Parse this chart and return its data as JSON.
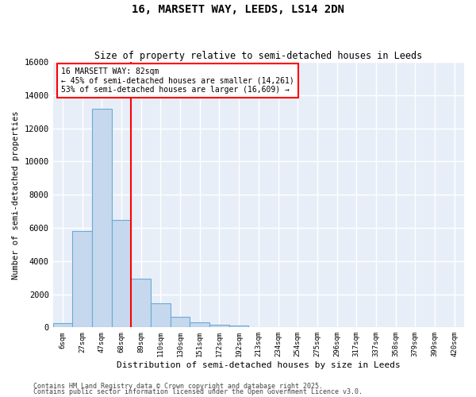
{
  "title": "16, MARSETT WAY, LEEDS, LS14 2DN",
  "subtitle": "Size of property relative to semi-detached houses in Leeds",
  "xlabel": "Distribution of semi-detached houses by size in Leeds",
  "ylabel": "Number of semi-detached properties",
  "bar_color": "#c5d8ee",
  "bar_edge_color": "#6aaad4",
  "background_color": "#e8eef8",
  "grid_color": "white",
  "categories": [
    "6sqm",
    "27sqm",
    "47sqm",
    "68sqm",
    "89sqm",
    "110sqm",
    "130sqm",
    "151sqm",
    "172sqm",
    "192sqm",
    "213sqm",
    "234sqm",
    "254sqm",
    "275sqm",
    "296sqm",
    "317sqm",
    "337sqm",
    "358sqm",
    "379sqm",
    "399sqm",
    "420sqm"
  ],
  "values": [
    270,
    5800,
    13200,
    6500,
    2950,
    1450,
    620,
    280,
    170,
    100,
    0,
    0,
    0,
    0,
    0,
    0,
    0,
    0,
    0,
    0,
    0
  ],
  "red_line_x": 3.5,
  "annotation_title": "16 MARSETT WAY: 82sqm",
  "annotation_line1": "← 45% of semi-detached houses are smaller (14,261)",
  "annotation_line2": "53% of semi-detached houses are larger (16,609) →",
  "ylim": [
    0,
    16000
  ],
  "yticks": [
    0,
    2000,
    4000,
    6000,
    8000,
    10000,
    12000,
    14000,
    16000
  ],
  "footer1": "Contains HM Land Registry data © Crown copyright and database right 2025.",
  "footer2": "Contains public sector information licensed under the Open Government Licence v3.0."
}
